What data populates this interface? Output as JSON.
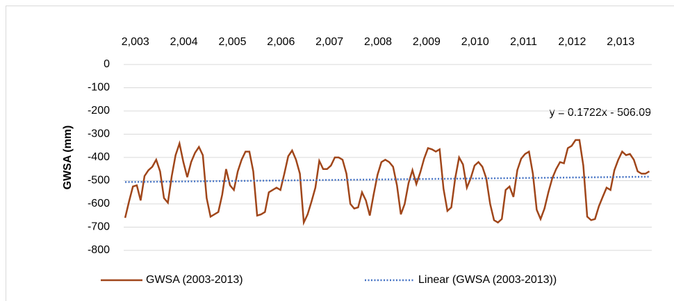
{
  "chart_data": {
    "type": "line",
    "ylabel": "GWSA (mm)",
    "annotation": "y = 0.1722x - 506.09",
    "xlim": [
      2002.76,
      2013.64
    ],
    "xticks": [
      {
        "value": 2003,
        "label": "2,003"
      },
      {
        "value": 2004,
        "label": "2,004"
      },
      {
        "value": 2005,
        "label": "2,005"
      },
      {
        "value": 2006,
        "label": "2,006"
      },
      {
        "value": 2007,
        "label": "2,007"
      },
      {
        "value": 2008,
        "label": "2,008"
      },
      {
        "value": 2009,
        "label": "2,009"
      },
      {
        "value": 2010,
        "label": "2,010"
      },
      {
        "value": 2011,
        "label": "2,011"
      },
      {
        "value": 2012,
        "label": "2,012"
      },
      {
        "value": 2013,
        "label": "2,013"
      }
    ],
    "ylim": [
      -800,
      0
    ],
    "yticks": [
      0,
      -100,
      -200,
      -300,
      -400,
      -500,
      -600,
      -700,
      -800
    ],
    "grid": true,
    "legend": "bottom",
    "series": [
      {
        "name": "GWSA (2003-2013)",
        "color": "#a0461a",
        "style": "solid",
        "x": [
          2002.79,
          2002.87,
          2002.95,
          2003.03,
          2003.11,
          2003.19,
          2003.27,
          2003.35,
          2003.43,
          2003.51,
          2003.59,
          2003.67,
          2003.75,
          2003.83,
          2003.91,
          2003.99,
          2004.07,
          2004.15,
          2004.23,
          2004.31,
          2004.39,
          2004.47,
          2004.55,
          2004.63,
          2004.71,
          2004.79,
          2004.87,
          2004.95,
          2005.03,
          2005.11,
          2005.19,
          2005.27,
          2005.35,
          2005.43,
          2005.51,
          2005.59,
          2005.67,
          2005.75,
          2005.83,
          2005.91,
          2005.99,
          2006.07,
          2006.15,
          2006.23,
          2006.31,
          2006.39,
          2006.47,
          2006.55,
          2006.63,
          2006.71,
          2006.79,
          2006.87,
          2006.95,
          2007.03,
          2007.11,
          2007.19,
          2007.27,
          2007.35,
          2007.43,
          2007.51,
          2007.59,
          2007.67,
          2007.75,
          2007.83,
          2007.91,
          2007.99,
          2008.07,
          2008.15,
          2008.23,
          2008.31,
          2008.39,
          2008.47,
          2008.55,
          2008.63,
          2008.71,
          2008.79,
          2008.87,
          2008.95,
          2009.03,
          2009.11,
          2009.19,
          2009.27,
          2009.35,
          2009.43,
          2009.51,
          2009.59,
          2009.67,
          2009.75,
          2009.83,
          2009.91,
          2009.99,
          2010.07,
          2010.15,
          2010.23,
          2010.31,
          2010.39,
          2010.47,
          2010.55,
          2010.63,
          2010.71,
          2010.79,
          2010.87,
          2010.95,
          2011.03,
          2011.11,
          2011.19,
          2011.27,
          2011.35,
          2011.43,
          2011.51,
          2011.59,
          2011.67,
          2011.75,
          2011.83,
          2011.91,
          2011.99,
          2012.07,
          2012.15,
          2012.23,
          2012.31,
          2012.39,
          2012.47,
          2012.55,
          2012.63,
          2012.71,
          2012.79,
          2012.87,
          2012.95,
          2013.03,
          2013.11,
          2013.19,
          2013.27,
          2013.35,
          2013.43,
          2013.51,
          2013.59
        ],
        "values": [
          -660,
          -590,
          -525,
          -520,
          -585,
          -480,
          -455,
          -440,
          -410,
          -460,
          -575,
          -595,
          -480,
          -390,
          -340,
          -420,
          -485,
          -420,
          -380,
          -355,
          -390,
          -575,
          -655,
          -645,
          -635,
          -560,
          -450,
          -520,
          -540,
          -460,
          -410,
          -375,
          -375,
          -460,
          -650,
          -645,
          -635,
          -550,
          -540,
          -530,
          -540,
          -470,
          -395,
          -370,
          -410,
          -470,
          -680,
          -645,
          -590,
          -530,
          -415,
          -450,
          -450,
          -435,
          -400,
          -400,
          -410,
          -470,
          -600,
          -620,
          -615,
          -550,
          -585,
          -650,
          -560,
          -475,
          -420,
          -410,
          -420,
          -440,
          -520,
          -645,
          -600,
          -510,
          -455,
          -515,
          -465,
          -405,
          -360,
          -365,
          -375,
          -365,
          -535,
          -630,
          -615,
          -490,
          -400,
          -430,
          -530,
          -490,
          -435,
          -420,
          -440,
          -490,
          -600,
          -670,
          -680,
          -665,
          -540,
          -525,
          -570,
          -455,
          -405,
          -385,
          -375,
          -470,
          -625,
          -665,
          -620,
          -550,
          -490,
          -450,
          -420,
          -425,
          -360,
          -350,
          -325,
          -325,
          -435,
          -655,
          -670,
          -665,
          -610,
          -570,
          -530,
          -540,
          -455,
          -410,
          -375,
          -390,
          -385,
          -410,
          -460,
          -470,
          -470,
          -460
        ]
      },
      {
        "name": "Linear (GWSA (2003-2013))",
        "color": "#4472c4",
        "style": "dotted",
        "x": [
          2002.79,
          2013.59
        ],
        "values": [
          -506,
          -483
        ]
      }
    ]
  }
}
